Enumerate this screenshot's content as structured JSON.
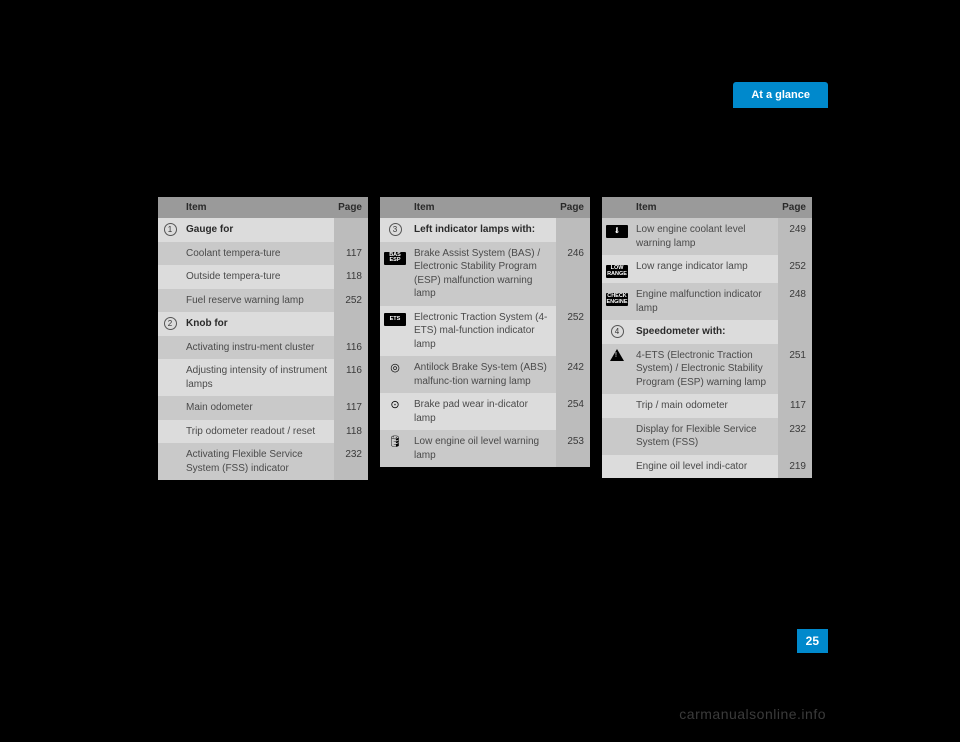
{
  "tab": "At a glance",
  "headers": {
    "item": "Item",
    "page": "Page"
  },
  "col1": [
    {
      "marker": {
        "type": "circ",
        "text": "1"
      },
      "item": "Gauge for",
      "page": "",
      "hdr": true,
      "alt": false
    },
    {
      "item": "Coolant tempera-ture",
      "page": "117",
      "alt": true
    },
    {
      "item": "Outside tempera-ture",
      "page": "118",
      "alt": false
    },
    {
      "item": "Fuel reserve warning lamp",
      "page": "252",
      "alt": true
    },
    {
      "marker": {
        "type": "circ",
        "text": "2"
      },
      "item": "Knob for",
      "page": "",
      "hdr": true,
      "alt": false
    },
    {
      "item": "Activating instru-ment cluster",
      "page": "116",
      "alt": true
    },
    {
      "item": "Adjusting intensity of instrument lamps",
      "page": "116",
      "alt": false
    },
    {
      "item": "Main odometer",
      "page": "117",
      "alt": true
    },
    {
      "item": "Trip odometer readout / reset",
      "page": "118",
      "alt": false
    },
    {
      "item": "Activating Flexible Service System (FSS) indicator",
      "page": "232",
      "alt": true
    }
  ],
  "col2": [
    {
      "marker": {
        "type": "circ",
        "text": "3"
      },
      "item": "Left indicator lamps with:",
      "page": "",
      "hdr": true,
      "alt": false
    },
    {
      "marker": {
        "type": "iconbox",
        "text": "BAS\\nESP"
      },
      "item": "Brake Assist System (BAS) / Electronic Stability Program (ESP) malfunction warning lamp",
      "page": "246",
      "alt": true
    },
    {
      "marker": {
        "type": "iconbox",
        "text": "ETS"
      },
      "item": "Electronic Traction System (4-ETS) mal-function indicator lamp",
      "page": "252",
      "alt": false
    },
    {
      "marker": {
        "type": "sym",
        "text": "◎"
      },
      "item": "Antilock Brake Sys-tem (ABS) malfunc-tion warning lamp",
      "page": "242",
      "alt": true
    },
    {
      "marker": {
        "type": "sym",
        "text": "⊙"
      },
      "item": "Brake pad wear in-dicator lamp",
      "page": "254",
      "alt": false
    },
    {
      "marker": {
        "type": "sym",
        "text": "🛢"
      },
      "item": "Low engine oil level warning lamp",
      "page": "253",
      "alt": true
    }
  ],
  "col3": [
    {
      "marker": null,
      "item": "",
      "page": "",
      "hdr": true,
      "alt": false,
      "skipHead": true
    },
    {
      "marker": {
        "type": "iconbox",
        "text": "🌡"
      },
      "item": "Low engine coolant level warning lamp",
      "page": "249",
      "alt": true
    },
    {
      "marker": {
        "type": "iconbox",
        "text": "LOW\\nRANGE"
      },
      "item": "Low range indicator lamp",
      "page": "252",
      "alt": false
    },
    {
      "marker": {
        "type": "iconbox",
        "text": "CHECK\\nENGINE"
      },
      "item": "Engine malfunction indicator lamp",
      "page": "248",
      "alt": true
    },
    {
      "marker": {
        "type": "circ",
        "text": "4"
      },
      "item": "Speedometer with:",
      "page": "",
      "hdr": true,
      "alt": false
    },
    {
      "marker": {
        "type": "tri"
      },
      "item": "4-ETS (Electronic Traction System) / Electronic Stability Program (ESP) warning lamp",
      "page": "251",
      "alt": true
    },
    {
      "item": "Trip / main odometer",
      "page": "117",
      "alt": false
    },
    {
      "item": "Display for Flexible Service System (FSS)",
      "page": "232",
      "alt": true
    },
    {
      "item": "Engine oil level indi-cator",
      "page": "219",
      "alt": false
    }
  ],
  "pageNumber": "25",
  "watermark": "carmanualsonline.info"
}
